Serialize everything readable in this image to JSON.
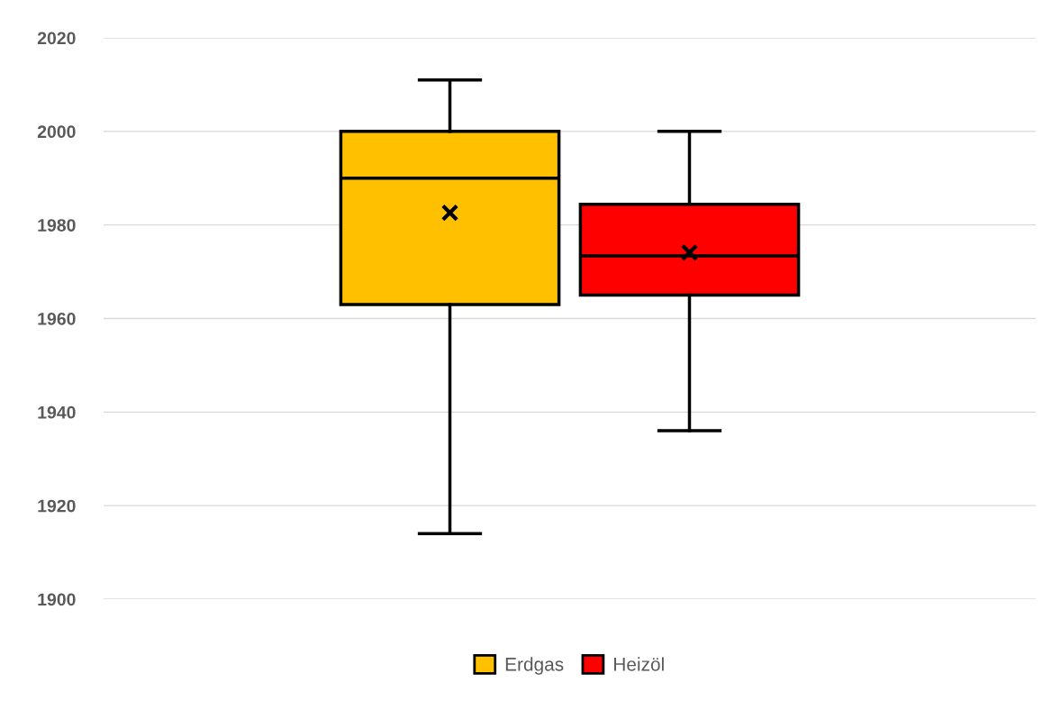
{
  "chart_data": {
    "type": "box",
    "categories": [
      null
    ],
    "series": [
      {
        "name": "Erdgas",
        "color": "#ffc000",
        "boxes": [
          {
            "low": 1914,
            "q1": 1963,
            "median": 1990,
            "q3": 2000,
            "high": 2011,
            "mean": 1982.6
          }
        ]
      },
      {
        "name": "Heizöl",
        "color": "#ff0000",
        "boxes": [
          {
            "low": 1936,
            "q1": 1965,
            "median": 1973.4,
            "q3": 1984.4,
            "high": 2000,
            "mean": 1974.1
          }
        ]
      }
    ],
    "ylim": [
      1900,
      2020
    ],
    "yticks": [
      1900,
      1920,
      1940,
      1960,
      1980,
      2000,
      2020
    ],
    "grid": "y",
    "legend": "bottom",
    "tick_labels": "y"
  }
}
